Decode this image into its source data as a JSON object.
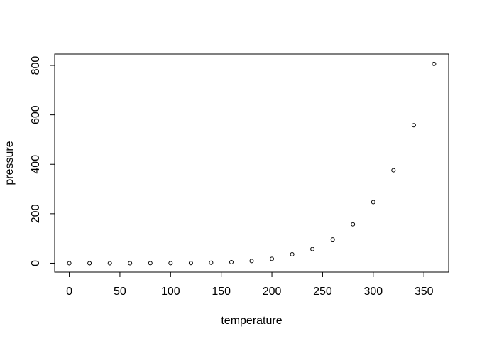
{
  "chart_data": {
    "type": "scatter",
    "title": "",
    "xlabel": "temperature",
    "ylabel": "pressure",
    "x": [
      0,
      20,
      40,
      60,
      80,
      100,
      120,
      140,
      160,
      180,
      200,
      220,
      240,
      260,
      280,
      300,
      320,
      340,
      360
    ],
    "y": [
      0.0002,
      0.0012,
      0.006,
      0.03,
      0.09,
      0.27,
      0.75,
      1.85,
      4.2,
      8.8,
      17.3,
      35.7,
      57.0,
      96.0,
      157.0,
      247.0,
      376.0,
      558.0,
      806.0
    ],
    "x_ticks": [
      0,
      50,
      100,
      150,
      200,
      250,
      300,
      350
    ],
    "y_ticks": [
      0,
      200,
      400,
      600,
      800
    ],
    "xlim": [
      -14.4,
      374.4
    ],
    "ylim": [
      -36,
      846
    ],
    "grid": false,
    "legend": "none",
    "marker": "open-circle",
    "colors": {
      "points": "#000000",
      "axis": "#000000",
      "text": "#000000",
      "background": "#ffffff"
    }
  }
}
